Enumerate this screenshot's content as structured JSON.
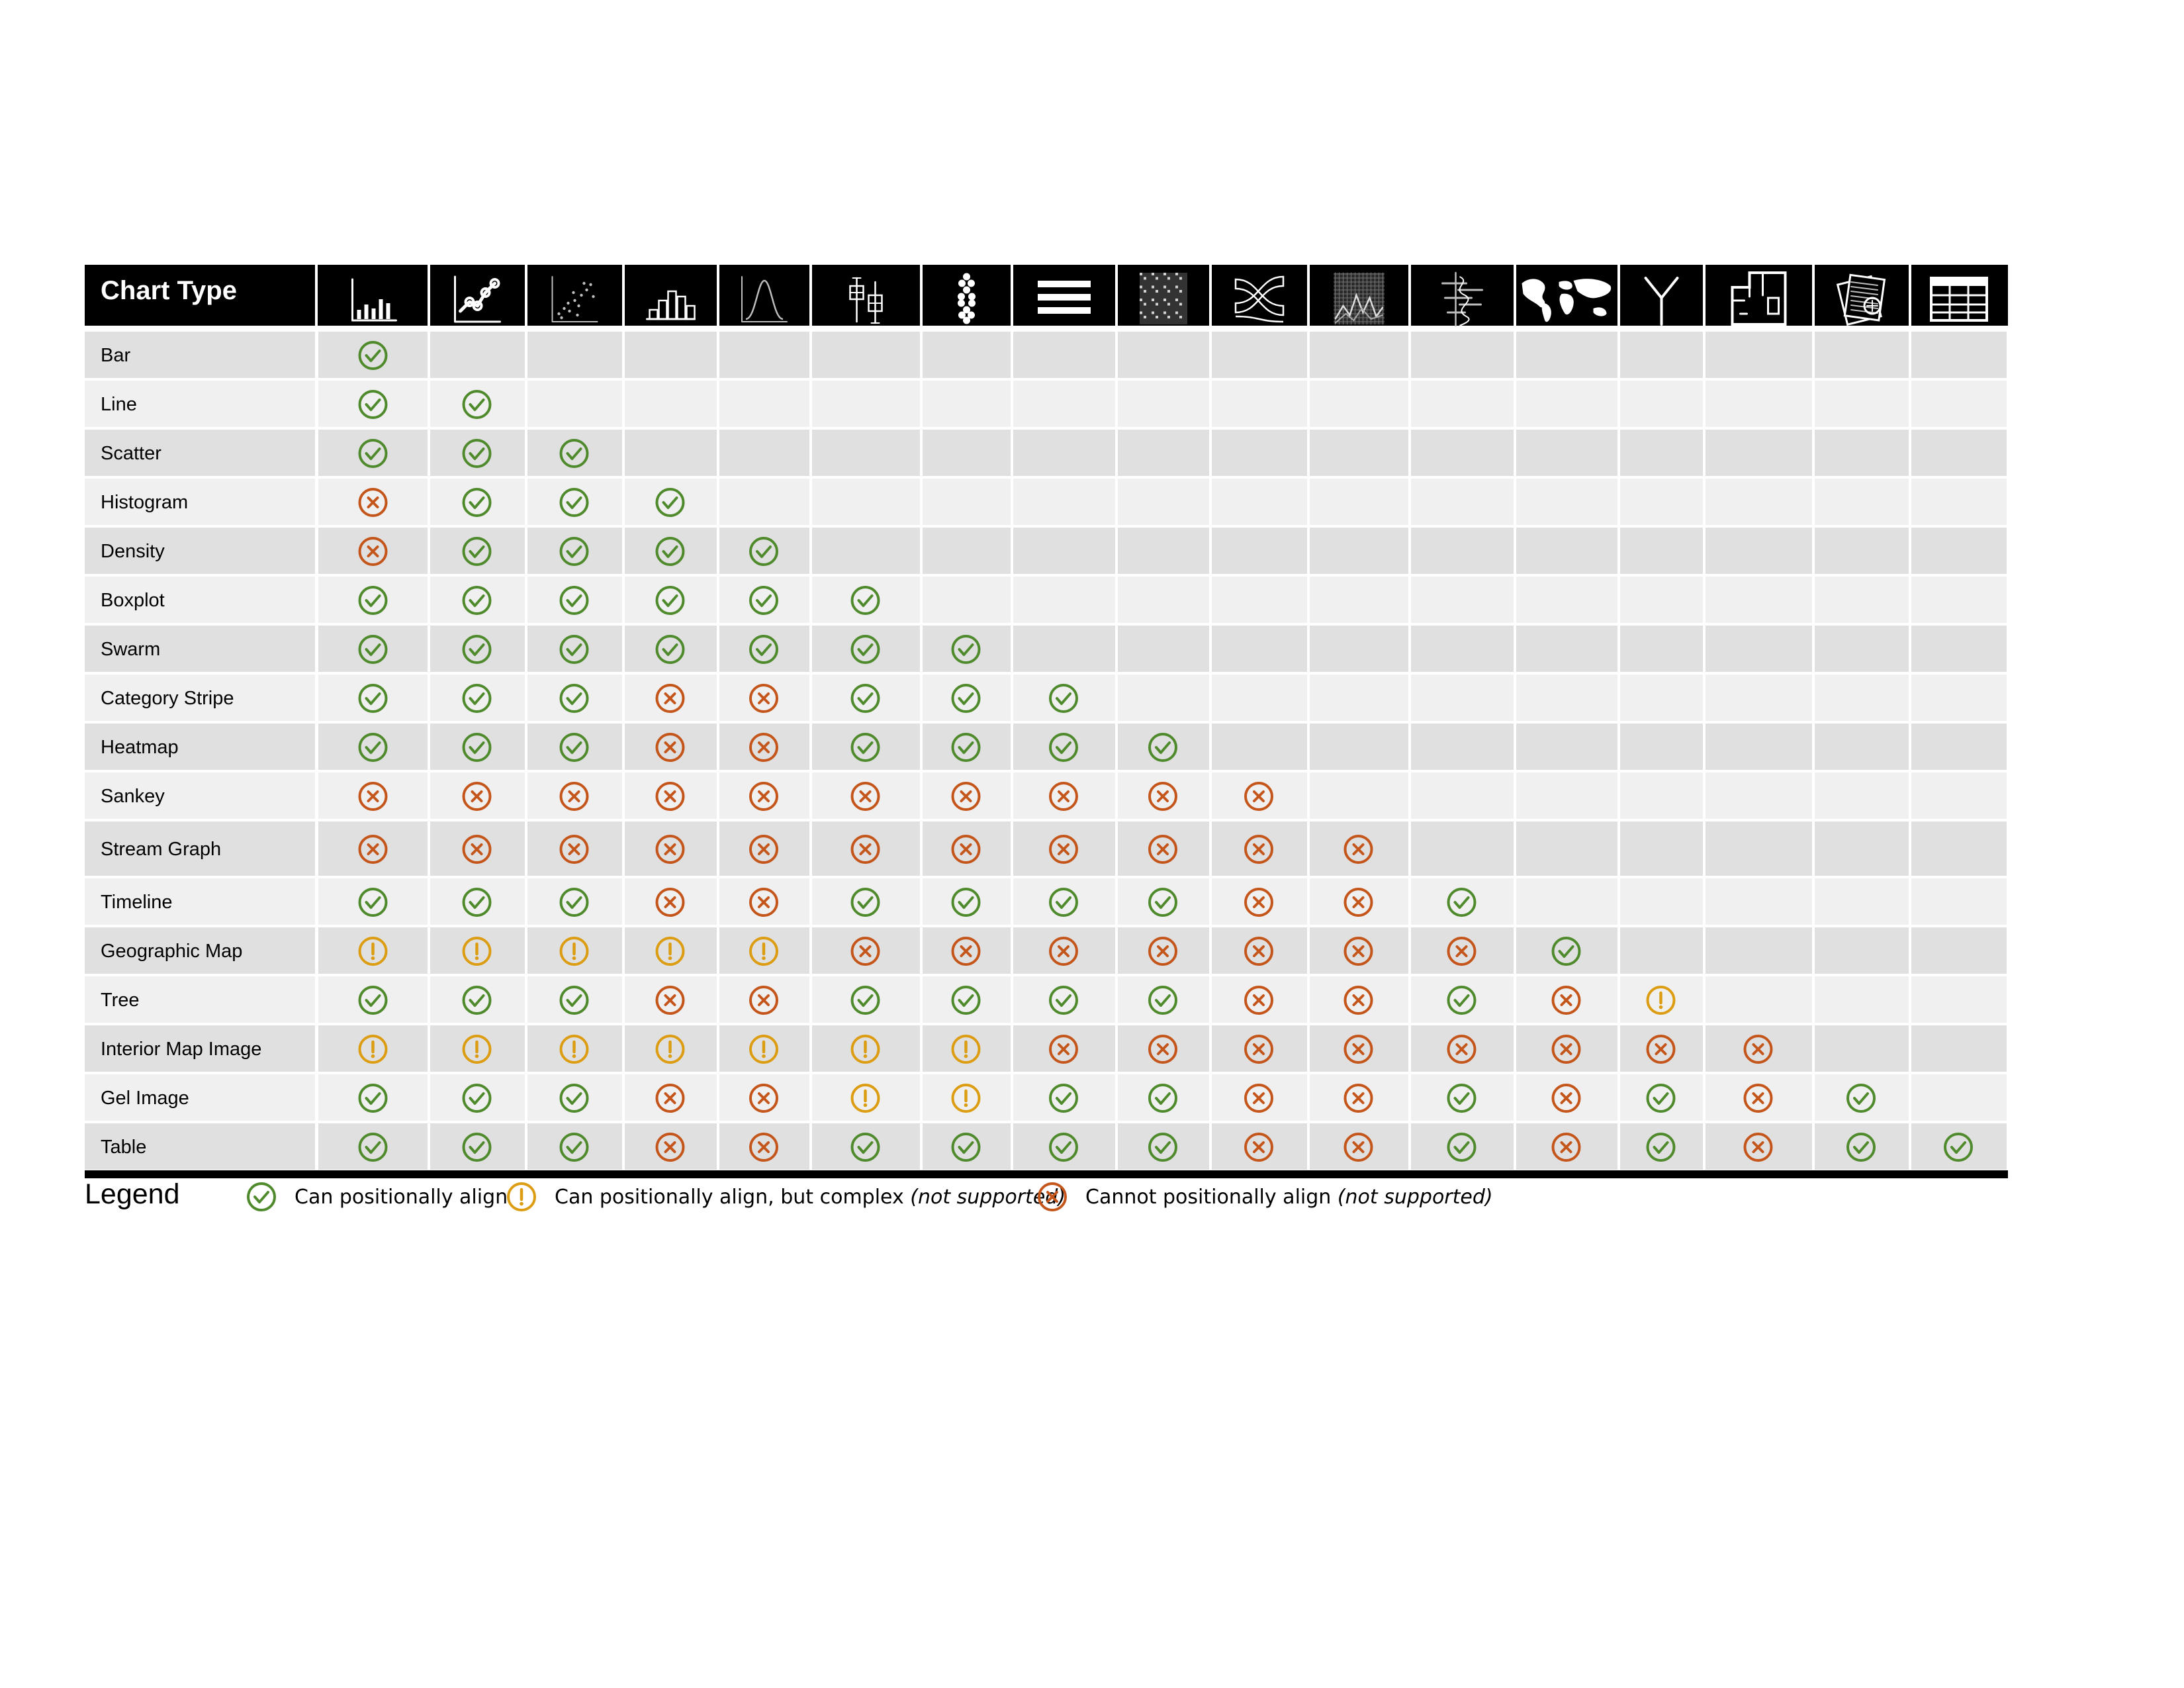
{
  "chart_data": {
    "type": "table",
    "title": "",
    "header": {
      "row_header": "Chart Type",
      "columns": [
        {
          "icon": "bar-chart-icon"
        },
        {
          "icon": "line-chart-icon"
        },
        {
          "icon": "scatter-chart-icon"
        },
        {
          "icon": "histogram-icon"
        },
        {
          "icon": "density-curve-icon"
        },
        {
          "icon": "boxplot-icon"
        },
        {
          "icon": "swarm-icon"
        },
        {
          "icon": "category-stripe-icon"
        },
        {
          "icon": "heatmap-icon"
        },
        {
          "icon": "sankey-icon"
        },
        {
          "icon": "stream-graph-icon"
        },
        {
          "icon": "timeline-icon"
        },
        {
          "icon": "world-map-icon"
        },
        {
          "icon": "tree-icon"
        },
        {
          "icon": "floor-plan-icon"
        },
        {
          "icon": "gel-image-icon"
        },
        {
          "icon": "table-icon"
        }
      ]
    },
    "rows": [
      {
        "label": "Bar",
        "values": [
          "yes"
        ]
      },
      {
        "label": "Line",
        "values": [
          "yes",
          "yes"
        ]
      },
      {
        "label": "Scatter",
        "values": [
          "yes",
          "yes",
          "yes"
        ]
      },
      {
        "label": "Histogram",
        "values": [
          "no",
          "yes",
          "yes",
          "yes"
        ]
      },
      {
        "label": "Density",
        "values": [
          "no",
          "yes",
          "yes",
          "yes",
          "yes"
        ]
      },
      {
        "label": "Boxplot",
        "values": [
          "yes",
          "yes",
          "yes",
          "yes",
          "yes",
          "yes"
        ]
      },
      {
        "label": "Swarm",
        "values": [
          "yes",
          "yes",
          "yes",
          "yes",
          "yes",
          "yes",
          "yes"
        ]
      },
      {
        "label": "Category Stripe",
        "values": [
          "yes",
          "yes",
          "yes",
          "no",
          "no",
          "yes",
          "yes",
          "yes"
        ]
      },
      {
        "label": "Heatmap",
        "values": [
          "yes",
          "yes",
          "yes",
          "no",
          "no",
          "yes",
          "yes",
          "yes",
          "yes"
        ]
      },
      {
        "label": "Sankey",
        "values": [
          "no",
          "no",
          "no",
          "no",
          "no",
          "no",
          "no",
          "no",
          "no",
          "no"
        ]
      },
      {
        "label": "Stream Graph",
        "values": [
          "no",
          "no",
          "no",
          "no",
          "no",
          "no",
          "no",
          "no",
          "no",
          "no",
          "no"
        ]
      },
      {
        "label": "Timeline",
        "values": [
          "yes",
          "yes",
          "yes",
          "no",
          "no",
          "yes",
          "yes",
          "yes",
          "yes",
          "no",
          "no",
          "yes"
        ]
      },
      {
        "label": "Geographic Map",
        "values": [
          "complex",
          "complex",
          "complex",
          "complex",
          "complex",
          "no",
          "no",
          "no",
          "no",
          "no",
          "no",
          "no",
          "yes"
        ]
      },
      {
        "label": "Tree",
        "values": [
          "yes",
          "yes",
          "yes",
          "no",
          "no",
          "yes",
          "yes",
          "yes",
          "yes",
          "no",
          "no",
          "yes",
          "no",
          "complex"
        ]
      },
      {
        "label": "Interior Map Image",
        "values": [
          "complex",
          "complex",
          "complex",
          "complex",
          "complex",
          "complex",
          "complex",
          "no",
          "no",
          "no",
          "no",
          "no",
          "no",
          "no",
          "no"
        ]
      },
      {
        "label": "Gel Image",
        "values": [
          "yes",
          "yes",
          "yes",
          "no",
          "no",
          "complex",
          "complex",
          "yes",
          "yes",
          "no",
          "no",
          "yes",
          "no",
          "yes",
          "no",
          "yes"
        ]
      },
      {
        "label": "Table",
        "values": [
          "yes",
          "yes",
          "yes",
          "no",
          "no",
          "yes",
          "yes",
          "yes",
          "yes",
          "no",
          "no",
          "yes",
          "no",
          "yes",
          "no",
          "yes",
          "yes"
        ]
      }
    ],
    "legend": {
      "title": "Legend",
      "placement": "bottom",
      "items": [
        {
          "status": "yes",
          "icon": "check-circle-icon",
          "text": "Can positionally align",
          "note": ""
        },
        {
          "status": "complex",
          "icon": "exclamation-circle-icon",
          "text": "Can positionally align, but complex ",
          "note": "(not supported)"
        },
        {
          "status": "no",
          "icon": "x-circle-icon",
          "text": "Cannot positionally align ",
          "note": "(not supported)"
        }
      ]
    },
    "colors": {
      "yes": "#4f8a2c",
      "complex": "#dc9d12",
      "no": "#c4561b",
      "header_bg": "#000000",
      "row_even": "#e0e0e0",
      "row_odd": "#f0f0f0"
    }
  }
}
